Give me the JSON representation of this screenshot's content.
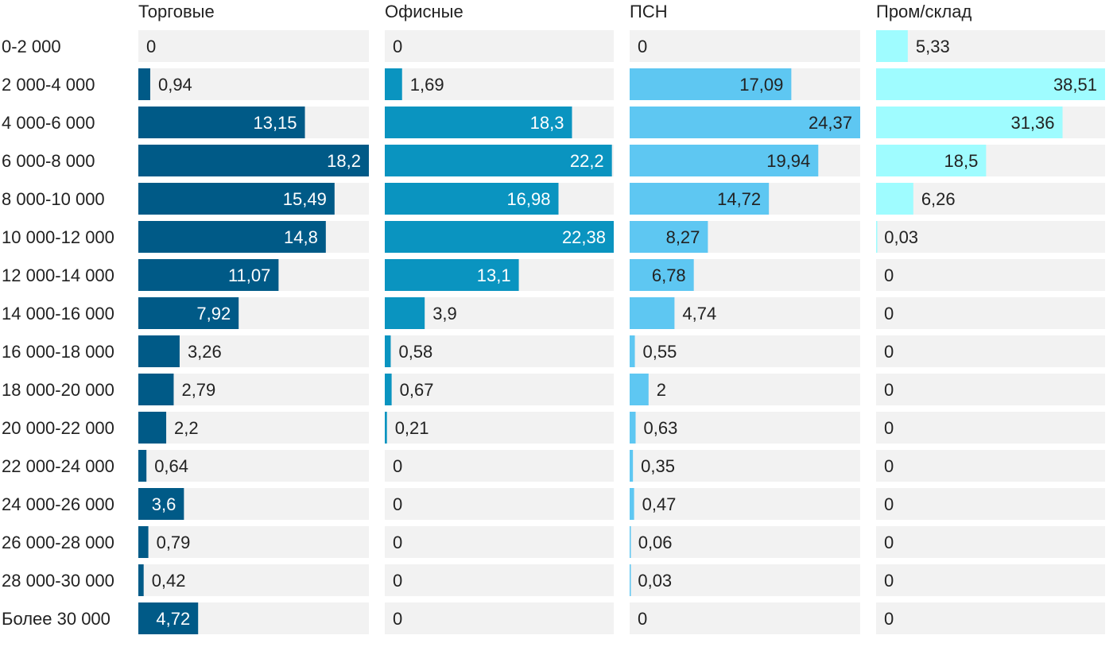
{
  "chart_data": {
    "type": "bar",
    "orientation": "horizontal",
    "layout": "small-multiples",
    "categories": [
      "0-2 000",
      "2 000-4 000",
      "4 000-6 000",
      "6 000-8 000",
      "8 000-10 000",
      "10 000-12 000",
      "12 000-14 000",
      "14 000-16 000",
      "16 000-18 000",
      "18 000-20 000",
      "20 000-22 000",
      "22 000-24 000",
      "24 000-26 000",
      "26 000-28 000",
      "28 000-30 000",
      "Более 30 000"
    ],
    "series": [
      {
        "name": "Торговые",
        "color": "#005a87",
        "label_color_inside": "#ffffff",
        "values": [
          0,
          0.94,
          13.15,
          18.2,
          15.49,
          14.8,
          11.07,
          7.92,
          3.26,
          2.79,
          2.2,
          0.64,
          3.6,
          0.79,
          0.42,
          4.72
        ]
      },
      {
        "name": "Офисные",
        "color": "#0a94c0",
        "label_color_inside": "#ffffff",
        "values": [
          0,
          1.69,
          18.3,
          22.2,
          16.98,
          22.38,
          13.1,
          3.9,
          0.58,
          0.67,
          0.21,
          0,
          0,
          0,
          0,
          0
        ]
      },
      {
        "name": "ПСН",
        "color": "#5ec7f2",
        "label_color_inside": "#222222",
        "values": [
          0,
          17.09,
          24.37,
          19.94,
          14.72,
          8.27,
          6.78,
          4.74,
          0.55,
          2,
          0.63,
          0.35,
          0.47,
          0.06,
          0.03,
          0
        ]
      },
      {
        "name": "Пром/склад",
        "color": "#9ffcff",
        "label_color_inside": "#222222",
        "values": [
          5.33,
          38.51,
          31.36,
          18.5,
          6.26,
          0.03,
          0,
          0,
          0,
          0,
          0,
          0,
          0,
          0,
          0,
          0
        ]
      }
    ],
    "panel_max": [
      18.2,
      22.38,
      24.37,
      38.51
    ],
    "value_labels": "decimal comma",
    "track_color": "#f2f2f2",
    "legend": "none",
    "grid": false
  }
}
